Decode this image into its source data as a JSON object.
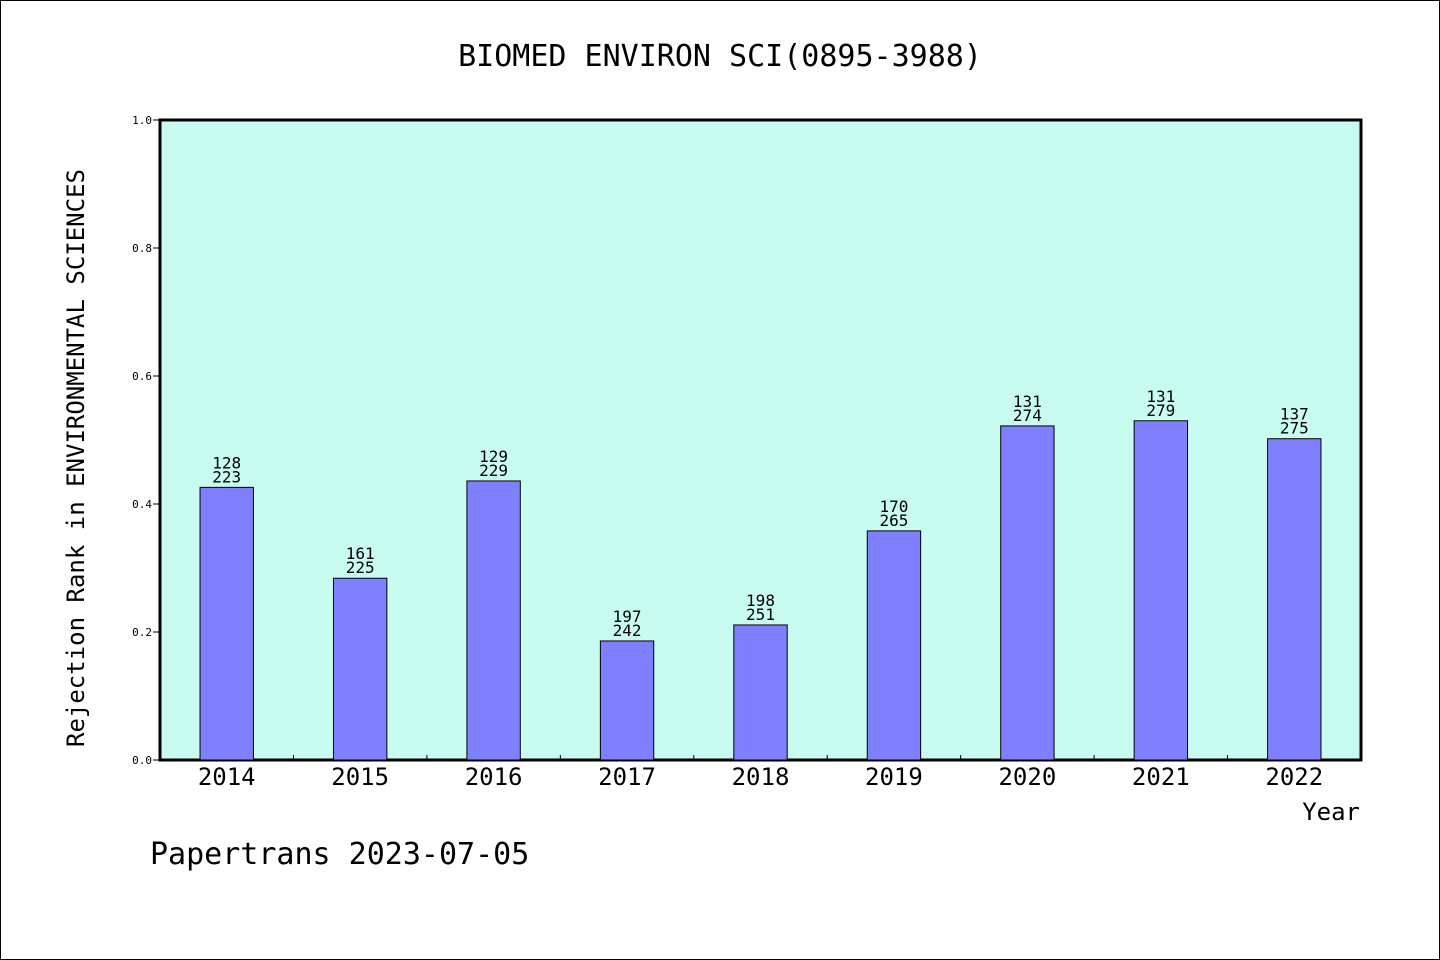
{
  "chart_data": {
    "type": "bar",
    "title": "BIOMED ENVIRON SCI(0895-3988)",
    "xlabel": "Year",
    "ylabel": "Rejection Rank in ENVIRONMENTAL SCIENCES",
    "ylim": [
      0,
      1.0
    ],
    "yticks": [
      "0.0",
      "0.2",
      "0.4",
      "0.6",
      "0.8",
      "1.0"
    ],
    "categories": [
      "2014",
      "2015",
      "2016",
      "2017",
      "2018",
      "2019",
      "2020",
      "2021",
      "2022"
    ],
    "values": [
      0.426,
      0.284,
      0.436,
      0.186,
      0.211,
      0.358,
      0.522,
      0.53,
      0.502
    ],
    "rank_labels": [
      "128",
      "161",
      "129",
      "197",
      "198",
      "170",
      "131",
      "131",
      "137"
    ],
    "total_labels": [
      "223",
      "225",
      "229",
      "242",
      "251",
      "265",
      "274",
      "279",
      "275"
    ],
    "grid": false,
    "colors": {
      "plot_background": "#c8fcf0",
      "bar_fill": "#8080ff",
      "bar_stroke": "#000000"
    }
  },
  "footer": "Papertrans 2023-07-05"
}
